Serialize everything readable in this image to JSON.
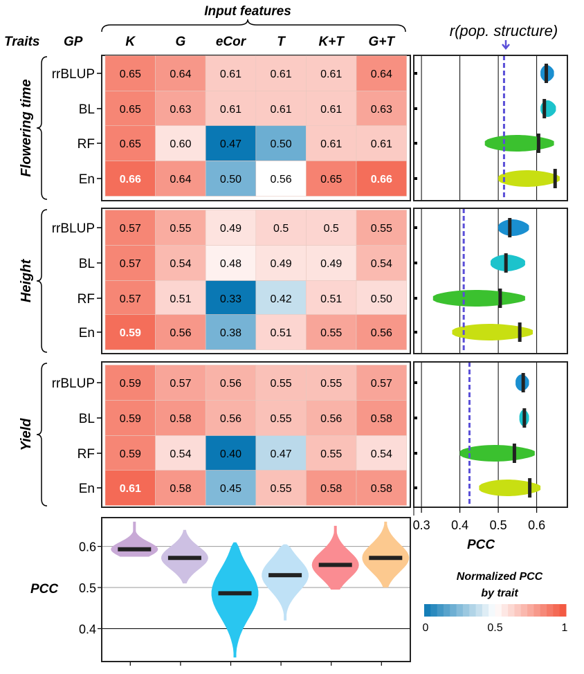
{
  "chart_data": [
    {
      "type": "heatmap",
      "title": "Input features",
      "row_group_label": "Traits",
      "row_label": "GP",
      "columns": [
        "K",
        "G",
        "eCor",
        "T",
        "K+T",
        "G+T"
      ],
      "color_scale": {
        "title_line1": "Normalized PCC",
        "title_line2": "by trait",
        "ticks": [
          "0",
          "0.5",
          "1"
        ],
        "low": "#0a78b4",
        "mid": "#ffffff",
        "high": "#f2523a"
      },
      "traits": [
        {
          "name": "Flowering time",
          "rows": [
            {
              "label": "rrBLUP",
              "values": [
                "0.65",
                "0.64",
                "0.61",
                "0.61",
                "0.61",
                "0.64"
              ],
              "norm": [
                0.85,
                0.8,
                0.65,
                0.65,
                0.65,
                0.82
              ]
            },
            {
              "label": "BL",
              "values": [
                "0.65",
                "0.63",
                "0.61",
                "0.61",
                "0.61",
                "0.63"
              ],
              "norm": [
                0.85,
                0.76,
                0.65,
                0.65,
                0.65,
                0.76
              ]
            },
            {
              "label": "RF",
              "values": [
                "0.65",
                "0.60",
                "0.47",
                "0.50",
                "0.61",
                "0.61"
              ],
              "norm": [
                0.86,
                0.58,
                0.0,
                0.2,
                0.65,
                0.65
              ]
            },
            {
              "label": "En",
              "values": [
                "0.66",
                "0.64",
                "0.50",
                "0.56",
                "0.65",
                "0.66"
              ],
              "norm": [
                0.92,
                0.8,
                0.22,
                0.5,
                0.86,
                0.92
              ]
            }
          ],
          "bold": [
            [
              3,
              0
            ],
            [
              3,
              5
            ]
          ],
          "pop_structure_r": 0.515,
          "violins": [
            {
              "model": "rrBLUP",
              "color": "#1a8fd0",
              "min": 0.61,
              "max": 0.645,
              "median": 0.625
            },
            {
              "model": "BL",
              "color": "#1cc3cc",
              "min": 0.61,
              "max": 0.65,
              "median": 0.62
            },
            {
              "model": "RF",
              "color": "#3bc12f",
              "min": 0.465,
              "max": 0.645,
              "median": 0.605
            },
            {
              "model": "En",
              "color": "#c8df12",
              "min": 0.5,
              "max": 0.66,
              "median": 0.648
            }
          ]
        },
        {
          "name": "Height",
          "rows": [
            {
              "label": "rrBLUP",
              "values": [
                "0.57",
                "0.55",
                "0.49",
                "0.5",
                "0.5",
                "0.55"
              ],
              "norm": [
                0.85,
                0.74,
                0.58,
                0.62,
                0.62,
                0.74
              ]
            },
            {
              "label": "BL",
              "values": [
                "0.57",
                "0.54",
                "0.48",
                "0.49",
                "0.49",
                "0.54"
              ],
              "norm": [
                0.85,
                0.7,
                0.54,
                0.58,
                0.58,
                0.7
              ]
            },
            {
              "label": "RF",
              "values": [
                "0.57",
                "0.51",
                "0.33",
                "0.42",
                "0.51",
                "0.50"
              ],
              "norm": [
                0.85,
                0.62,
                0.0,
                0.38,
                0.62,
                0.6
              ]
            },
            {
              "label": "En",
              "values": [
                "0.59",
                "0.56",
                "0.38",
                "0.51",
                "0.55",
                "0.56"
              ],
              "norm": [
                0.92,
                0.8,
                0.22,
                0.62,
                0.76,
                0.8
              ]
            }
          ],
          "bold": [
            [
              3,
              0
            ]
          ],
          "pop_structure_r": 0.41,
          "violins": [
            {
              "model": "rrBLUP",
              "color": "#1a8fd0",
              "min": 0.5,
              "max": 0.58,
              "median": 0.53
            },
            {
              "model": "BL",
              "color": "#1cc3cc",
              "min": 0.48,
              "max": 0.57,
              "median": 0.52
            },
            {
              "model": "RF",
              "color": "#3bc12f",
              "min": 0.33,
              "max": 0.57,
              "median": 0.505
            },
            {
              "model": "En",
              "color": "#c8df12",
              "min": 0.38,
              "max": 0.59,
              "median": 0.556
            }
          ]
        },
        {
          "name": "Yield",
          "rows": [
            {
              "label": "rrBLUP",
              "values": [
                "0.59",
                "0.57",
                "0.56",
                "0.55",
                "0.55",
                "0.57"
              ],
              "norm": [
                0.85,
                0.76,
                0.72,
                0.68,
                0.68,
                0.76
              ]
            },
            {
              "label": "BL",
              "values": [
                "0.59",
                "0.58",
                "0.56",
                "0.55",
                "0.56",
                "0.58"
              ],
              "norm": [
                0.85,
                0.8,
                0.72,
                0.68,
                0.72,
                0.8
              ]
            },
            {
              "label": "RF",
              "values": [
                "0.59",
                "0.54",
                "0.40",
                "0.47",
                "0.55",
                "0.54"
              ],
              "norm": [
                0.85,
                0.6,
                0.0,
                0.36,
                0.68,
                0.6
              ]
            },
            {
              "label": "En",
              "values": [
                "0.61",
                "0.58",
                "0.45",
                "0.55",
                "0.58",
                "0.58"
              ],
              "norm": [
                0.93,
                0.8,
                0.24,
                0.68,
                0.8,
                0.8
              ]
            }
          ],
          "bold": [
            [
              3,
              0
            ]
          ],
          "pop_structure_r": 0.425,
          "violins": [
            {
              "model": "rrBLUP",
              "color": "#1a8fd0",
              "min": 0.545,
              "max": 0.58,
              "median": 0.565
            },
            {
              "model": "BL",
              "color": "#1cc3cc",
              "min": 0.555,
              "max": 0.58,
              "median": 0.568
            },
            {
              "model": "RF",
              "color": "#3bc12f",
              "min": 0.4,
              "max": 0.595,
              "median": 0.542
            },
            {
              "model": "En",
              "color": "#c8df12",
              "min": 0.45,
              "max": 0.61,
              "median": 0.582
            }
          ]
        }
      ]
    },
    {
      "type": "violin",
      "orientation": "horizontal-panel",
      "title": "r(pop. structure)",
      "xlabel": "PCC",
      "xlim": [
        0.28,
        0.68
      ],
      "xticks": [
        "0.3",
        "0.4",
        "0.5",
        "0.6"
      ],
      "grid": true
    },
    {
      "type": "violin",
      "ylabel": "PCC",
      "ylim": [
        0.32,
        0.67
      ],
      "yticks": [
        "0.4",
        "0.5",
        "0.6"
      ],
      "series": [
        {
          "feature": "K",
          "color": "#c8a9d6",
          "min": 0.575,
          "max": 0.66,
          "median": 0.593
        },
        {
          "feature": "G",
          "color": "#cdc0e3",
          "min": 0.51,
          "max": 0.64,
          "median": 0.572
        },
        {
          "feature": "eCor",
          "color": "#29c6f0",
          "min": 0.33,
          "max": 0.61,
          "median": 0.486
        },
        {
          "feature": "T",
          "color": "#bfe1f6",
          "min": 0.42,
          "max": 0.605,
          "median": 0.53
        },
        {
          "feature": "K+T",
          "color": "#fa8c92",
          "min": 0.495,
          "max": 0.65,
          "median": 0.555
        },
        {
          "feature": "G+T",
          "color": "#fcc98f",
          "min": 0.5,
          "max": 0.66,
          "median": 0.572
        }
      ]
    }
  ]
}
